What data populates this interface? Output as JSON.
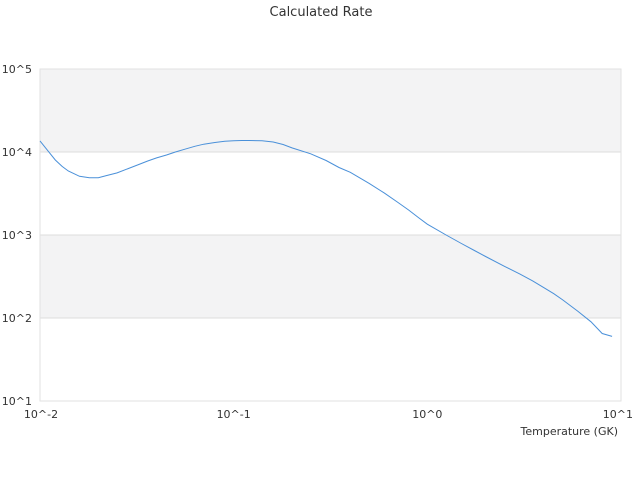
{
  "chart_data": {
    "type": "line",
    "title": "Calculated Rate",
    "xlabel": "Temperature (GK)",
    "ylabel": "",
    "x_scale": "log",
    "y_scale": "log",
    "xlim": [
      0.01,
      10
    ],
    "ylim": [
      10,
      100000
    ],
    "x_ticks": [
      {
        "value": 0.01,
        "label": "10^-2"
      },
      {
        "value": 0.1,
        "label": "10^-1"
      },
      {
        "value": 1,
        "label": "10^0"
      },
      {
        "value": 10,
        "label": "10^1"
      }
    ],
    "y_ticks": [
      {
        "value": 10,
        "label": "10^1"
      },
      {
        "value": 100,
        "label": "10^2"
      },
      {
        "value": 1000,
        "label": "10^3"
      },
      {
        "value": 10000,
        "label": "10^4"
      },
      {
        "value": 100000,
        "label": "10^5"
      }
    ],
    "grid": "alternating horizontal bands",
    "legend": "none",
    "line_color": "#4a90d9",
    "band_color": "#f3f3f4",
    "series": [
      {
        "x": [
          0.01,
          0.011,
          0.012,
          0.013,
          0.014,
          0.016,
          0.018,
          0.02,
          0.022,
          0.025,
          0.028,
          0.032,
          0.036,
          0.04,
          0.045,
          0.05,
          0.056,
          0.063,
          0.07,
          0.08,
          0.09,
          0.1,
          0.11,
          0.12,
          0.14,
          0.16,
          0.18,
          0.2,
          0.25,
          0.3,
          0.35,
          0.4,
          0.5,
          0.6,
          0.7,
          0.8,
          0.9,
          1.0,
          1.25,
          1.5,
          1.75,
          2.0,
          2.5,
          3.0,
          3.5,
          4.0,
          4.5,
          5.0,
          6.0,
          7.0,
          8.0,
          9.0
        ],
        "y": [
          13600,
          10300,
          8000,
          6700,
          5900,
          5100,
          4900,
          4900,
          5200,
          5600,
          6200,
          7000,
          7800,
          8500,
          9200,
          10000,
          10800,
          11700,
          12400,
          13000,
          13500,
          13700,
          13750,
          13750,
          13700,
          13200,
          12300,
          11200,
          9500,
          7900,
          6500,
          5700,
          4200,
          3200,
          2500,
          2000,
          1620,
          1350,
          1000,
          790,
          650,
          550,
          420,
          340,
          280,
          232,
          196,
          165,
          120,
          90,
          65,
          60
        ]
      }
    ]
  }
}
